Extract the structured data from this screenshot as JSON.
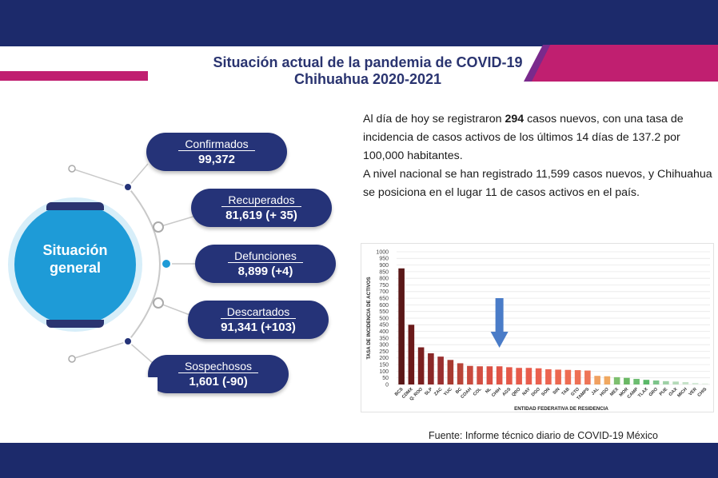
{
  "title": {
    "line1": "Situación actual de la pandemia de COVID-19",
    "line2": "Chihuahua 2020-2021"
  },
  "colors": {
    "navy": "#1c2a6b",
    "magenta": "#c01f70",
    "circle_blue": "#1e9bd7",
    "pill_navy": "#253378",
    "arrow_blue": "#4a7cc8"
  },
  "situation": {
    "label_line1": "Situación",
    "label_line2": "general",
    "items": [
      {
        "label": "Confirmados",
        "value": "99,372"
      },
      {
        "label": "Recuperados",
        "value": "81,619 (+ 35)"
      },
      {
        "label": "Defunciones",
        "value": "8,899 (+4)"
      },
      {
        "label": "Descartados",
        "value": "91,341 (+103)"
      },
      {
        "label": "Sospechosos",
        "value": "1,601 (-90)"
      }
    ]
  },
  "summary": {
    "p1_a": "Al día de hoy se registraron ",
    "p1_bold": "294",
    "p1_b": " casos nuevos, con una tasa de incidencia de casos activos de los últimos 14 días de 137.2 por 100,000 habitantes.",
    "p2": "A nivel nacional se han registrado 11,599 casos nuevos, y Chihuahua se posiciona en el lugar 11 de casos activos en el país."
  },
  "source": "Fuente: Informe técnico diario de COVID-19 México",
  "chart_data": {
    "type": "bar",
    "xlabel": "ENTIDAD FEDERATIVA DE RESIDENCIA",
    "ylabel": "TASA DE INCIDENCIA DE ACTIVOS",
    "ylim": [
      0,
      1000
    ],
    "yticks": [
      0,
      50,
      100,
      150,
      200,
      250,
      300,
      350,
      400,
      450,
      500,
      550,
      600,
      650,
      700,
      750,
      800,
      850,
      900,
      950,
      1000
    ],
    "grid": true,
    "categories": [
      "BCS",
      "CDMX",
      "Q. ROO",
      "SLP",
      "ZAC",
      "YUC",
      "BC",
      "COAH",
      "COL",
      "NL",
      "CHIH",
      "AGS",
      "QRO",
      "NAY",
      "DGO",
      "SON",
      "SIN",
      "TAB",
      "GTO",
      "TAMPS",
      "JAL",
      "HGO",
      "MEX",
      "MOR",
      "CAMP",
      "TLAX",
      "GRO",
      "PUE",
      "OAX",
      "MICH",
      "VER",
      "CHIS"
    ],
    "values": [
      875,
      450,
      280,
      235,
      210,
      185,
      160,
      140,
      137,
      137,
      137,
      130,
      125,
      125,
      122,
      115,
      112,
      110,
      108,
      105,
      65,
      62,
      55,
      50,
      42,
      35,
      30,
      25,
      22,
      18,
      12,
      8
    ],
    "bar_colors": [
      "#5a1818",
      "#6b1a1a",
      "#7a2020",
      "#8a2828",
      "#9a3030",
      "#a83a30",
      "#b84438",
      "#c84a3e",
      "#d24e42",
      "#da5044",
      "#e05446",
      "#e45848",
      "#e65a4a",
      "#e85c4c",
      "#ea604e",
      "#ec6450",
      "#ec6850",
      "#ee6c52",
      "#ee7054",
      "#ee7456",
      "#f0a060",
      "#f0a860",
      "#7dbf6e",
      "#6ab864",
      "#6cbd70",
      "#5ab868",
      "#7cc48a",
      "#9ed0a6",
      "#b4dab8",
      "#c6e2c8",
      "#d6eaD8",
      "#e4f0e4"
    ],
    "highlight": {
      "category": "CHIH",
      "marker": "arrow-down"
    }
  }
}
